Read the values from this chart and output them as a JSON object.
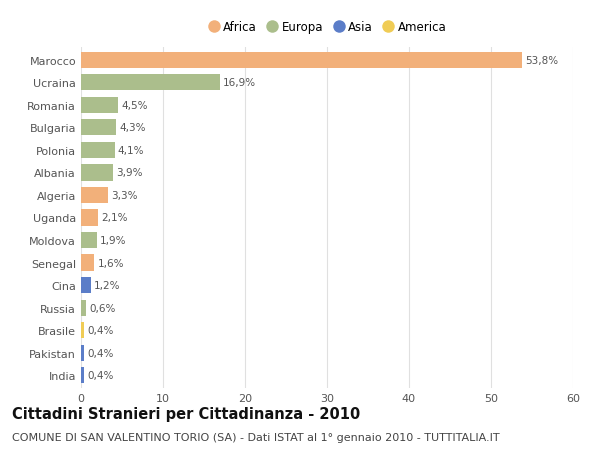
{
  "countries": [
    "Marocco",
    "Ucraina",
    "Romania",
    "Bulgaria",
    "Polonia",
    "Albania",
    "Algeria",
    "Uganda",
    "Moldova",
    "Senegal",
    "Cina",
    "Russia",
    "Brasile",
    "Pakistan",
    "India"
  ],
  "values": [
    53.8,
    16.9,
    4.5,
    4.3,
    4.1,
    3.9,
    3.3,
    2.1,
    1.9,
    1.6,
    1.2,
    0.6,
    0.4,
    0.4,
    0.4
  ],
  "labels": [
    "53,8%",
    "16,9%",
    "4,5%",
    "4,3%",
    "4,1%",
    "3,9%",
    "3,3%",
    "2,1%",
    "1,9%",
    "1,6%",
    "1,2%",
    "0,6%",
    "0,4%",
    "0,4%",
    "0,4%"
  ],
  "continent": [
    "Africa",
    "Europa",
    "Europa",
    "Europa",
    "Europa",
    "Europa",
    "Africa",
    "Africa",
    "Europa",
    "Africa",
    "Asia",
    "Europa",
    "America",
    "Asia",
    "Asia"
  ],
  "colors": {
    "Africa": "#F2B07A",
    "Europa": "#ABBE8C",
    "Asia": "#5B7DC8",
    "America": "#F0CC55"
  },
  "legend_order": [
    "Africa",
    "Europa",
    "Asia",
    "America"
  ],
  "title": "Cittadini Stranieri per Cittadinanza - 2010",
  "subtitle": "COMUNE DI SAN VALENTINO TORIO (SA) - Dati ISTAT al 1° gennaio 2010 - TUTTITALIA.IT",
  "xlim": [
    0,
    60
  ],
  "xticks": [
    0,
    10,
    20,
    30,
    40,
    50,
    60
  ],
  "background_color": "#ffffff",
  "grid_color": "#e0e0e0",
  "bar_height": 0.72,
  "title_fontsize": 10.5,
  "subtitle_fontsize": 8,
  "label_fontsize": 7.5,
  "tick_fontsize": 8,
  "legend_fontsize": 8.5
}
